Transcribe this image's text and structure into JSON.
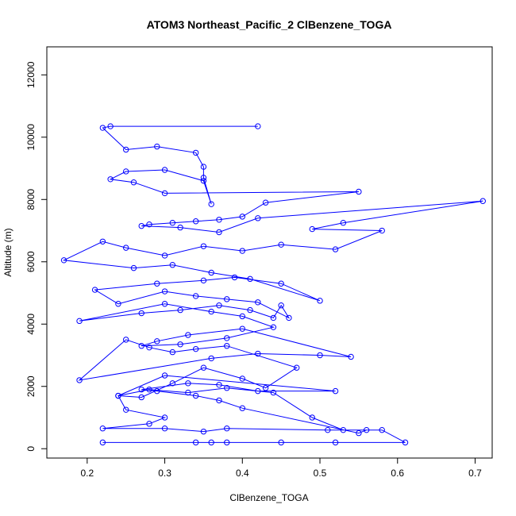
{
  "chart_data": {
    "type": "line",
    "title": "ATOM3 Northeast_Pacific_2 ClBenzene_TOGA",
    "xlabel": "ClBenzene_TOGA",
    "ylabel": "Altitude (m)",
    "xlim": [
      0.148,
      0.722
    ],
    "ylim": [
      -300,
      12900
    ],
    "x_ticks": [
      0.2,
      0.3,
      0.4,
      0.5,
      0.6,
      0.7
    ],
    "x_tick_labels": [
      "0.2",
      "0.3",
      "0.4",
      "0.5",
      "0.6",
      "0.7"
    ],
    "y_ticks": [
      0,
      2000,
      4000,
      6000,
      8000,
      10000,
      12000
    ],
    "y_tick_labels": [
      "0",
      "2000",
      "4000",
      "6000",
      "8000",
      "10000",
      "12000"
    ],
    "grid": false,
    "legend": "none",
    "series_color": "#0000ff",
    "marker": "open-circle",
    "x": [
      0.22,
      0.34,
      0.36,
      0.38,
      0.45,
      0.52,
      0.61,
      0.58,
      0.51,
      0.38,
      0.35,
      0.3,
      0.22,
      0.28,
      0.3,
      0.25,
      0.24,
      0.28,
      0.33,
      0.38,
      0.44,
      0.49,
      0.53,
      0.56,
      0.55,
      0.4,
      0.37,
      0.34,
      0.29,
      0.27,
      0.33,
      0.37,
      0.42,
      0.52,
      0.3,
      0.24,
      0.27,
      0.31,
      0.35,
      0.4,
      0.43,
      0.47,
      0.38,
      0.34,
      0.31,
      0.28,
      0.25,
      0.19,
      0.36,
      0.42,
      0.5,
      0.54,
      0.4,
      0.33,
      0.29,
      0.27,
      0.32,
      0.38,
      0.44,
      0.4,
      0.36,
      0.3,
      0.19,
      0.27,
      0.32,
      0.37,
      0.41,
      0.44,
      0.45,
      0.46,
      0.42,
      0.38,
      0.34,
      0.3,
      0.24,
      0.21,
      0.29,
      0.35,
      0.39,
      0.45,
      0.5,
      0.41,
      0.36,
      0.31,
      0.26,
      0.17,
      0.22,
      0.25,
      0.3,
      0.35,
      0.4,
      0.45,
      0.52,
      0.58,
      0.49,
      0.53,
      0.71,
      0.42,
      0.37,
      0.32,
      0.27,
      0.28,
      0.31,
      0.34,
      0.37,
      0.4,
      0.43,
      0.55,
      0.3,
      0.26,
      0.23,
      0.25,
      0.3,
      0.35,
      0.36,
      0.35,
      0.35,
      0.34,
      0.29,
      0.25,
      0.22,
      0.23,
      0.42
    ],
    "y": [
      200,
      200,
      200,
      200,
      200,
      200,
      200,
      600,
      600,
      650,
      550,
      650,
      650,
      800,
      1000,
      1250,
      1700,
      1900,
      1800,
      1950,
      1800,
      1000,
      600,
      600,
      500,
      1300,
      1550,
      1700,
      1850,
      1900,
      2100,
      2050,
      1850,
      1850,
      2350,
      1700,
      1650,
      2100,
      2600,
      2250,
      1950,
      2600,
      3300,
      3200,
      3100,
      3250,
      3500,
      2200,
      2900,
      3050,
      3000,
      2950,
      3850,
      3650,
      3450,
      3300,
      3350,
      3550,
      3900,
      4250,
      4400,
      4650,
      4100,
      4350,
      4450,
      4600,
      4450,
      4200,
      4600,
      4200,
      4700,
      4800,
      4900,
      5050,
      4650,
      5100,
      5300,
      5400,
      5500,
      5300,
      4750,
      5450,
      5650,
      5900,
      5800,
      6050,
      6650,
      6450,
      6200,
      6500,
      6350,
      6550,
      6400,
      7000,
      7050,
      7250,
      7950,
      7400,
      6950,
      7100,
      7150,
      7200,
      7250,
      7300,
      7350,
      7450,
      7900,
      8250,
      8200,
      8550,
      8650,
      8900,
      8950,
      8600,
      7850,
      8700,
      9050,
      9500,
      9700,
      9600,
      10300,
      10350,
      10350
    ]
  }
}
